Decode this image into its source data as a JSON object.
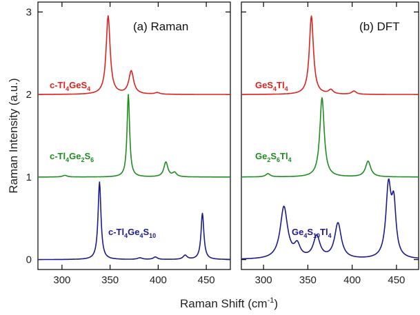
{
  "chart_data": [
    {
      "panel": "a",
      "type": "line",
      "title": "(a) Raman",
      "xlabel": "Raman Shift (cm",
      "xlabel_sup": "-1",
      "xlabel_end": ")",
      "ylabel": "Raman Intensity (a.u.)",
      "xlim": [
        275,
        475
      ],
      "ylim": [
        -0.12,
        3.12
      ],
      "xticks": [
        300,
        350,
        400,
        450
      ],
      "yticks": [
        0,
        1,
        2,
        3
      ],
      "grid": false,
      "series": [
        {
          "label_parts": [
            [
              "c-Tl",
              false
            ],
            [
              "4",
              true
            ],
            [
              "GeS",
              false
            ],
            [
              "4",
              true
            ]
          ],
          "color": "#e0201e",
          "offset": 2,
          "peaks": [
            [
              348,
              0.95,
              2.5
            ],
            [
              372,
              0.28,
              3
            ],
            [
              399,
              0.02,
              3
            ]
          ]
        },
        {
          "label_parts": [
            [
              "c-Tl",
              false
            ],
            [
              "4",
              true
            ],
            [
              "Ge",
              false
            ],
            [
              "2",
              true
            ],
            [
              "S",
              false
            ],
            [
              "6",
              true
            ]
          ],
          "color": "#1e8c1e",
          "offset": 1,
          "peaks": [
            [
              369,
              1.0,
              1.6
            ],
            [
              408,
              0.18,
              2.5
            ],
            [
              417,
              0.05,
              2.5
            ],
            [
              303,
              0.02,
              3
            ]
          ]
        },
        {
          "label_parts": [
            [
              "c-Tl",
              false
            ],
            [
              "4",
              true
            ],
            [
              "Ge",
              false
            ],
            [
              "4",
              true
            ],
            [
              "S",
              false
            ],
            [
              "10",
              true
            ]
          ],
          "color": "#1a1a8c",
          "offset": 0,
          "peaks": [
            [
              339,
              0.94,
              1.8
            ],
            [
              446,
              0.56,
              1.8
            ],
            [
              428,
              0.05,
              2.5
            ],
            [
              397,
              0.03,
              2.5
            ],
            [
              381,
              0.02,
              3
            ]
          ]
        }
      ]
    },
    {
      "panel": "b",
      "type": "line",
      "title": "(b) DFT",
      "xlim": [
        275,
        475
      ],
      "ylim": [
        -0.12,
        3.12
      ],
      "xticks": [
        300,
        350,
        400,
        450
      ],
      "yticks": [
        0,
        1,
        2,
        3
      ],
      "grid": false,
      "series": [
        {
          "label_parts": [
            [
              "GeS",
              false
            ],
            [
              "4",
              true
            ],
            [
              "Tl",
              false
            ],
            [
              "4",
              true
            ]
          ],
          "color": "#e0201e",
          "offset": 2,
          "peaks": [
            [
              354,
              0.95,
              2.8
            ],
            [
              376,
              0.05,
              3
            ],
            [
              402,
              0.04,
              3
            ]
          ]
        },
        {
          "label_parts": [
            [
              "Ge",
              false
            ],
            [
              "2",
              true
            ],
            [
              "S",
              false
            ],
            [
              "6",
              true
            ],
            [
              "Tl",
              false
            ],
            [
              "4",
              true
            ]
          ],
          "color": "#1e8c1e",
          "offset": 1,
          "peaks": [
            [
              366,
              0.96,
              3
            ],
            [
              418,
              0.19,
              3.5
            ],
            [
              305,
              0.04,
              3
            ]
          ]
        },
        {
          "label_parts": [
            [
              "Ge",
              false
            ],
            [
              "4",
              true
            ],
            [
              "S",
              false
            ],
            [
              "10",
              true
            ],
            [
              "Tl",
              false
            ],
            [
              "4",
              true
            ]
          ],
          "color": "#1a1a8c",
          "offset": 0,
          "peaks": [
            [
              323,
              0.63,
              5
            ],
            [
              338,
              0.15,
              4
            ],
            [
              360,
              0.27,
              4.5
            ],
            [
              384,
              0.43,
              4.5
            ],
            [
              441,
              0.85,
              3.5
            ],
            [
              447,
              0.6,
              3
            ]
          ]
        }
      ]
    }
  ]
}
